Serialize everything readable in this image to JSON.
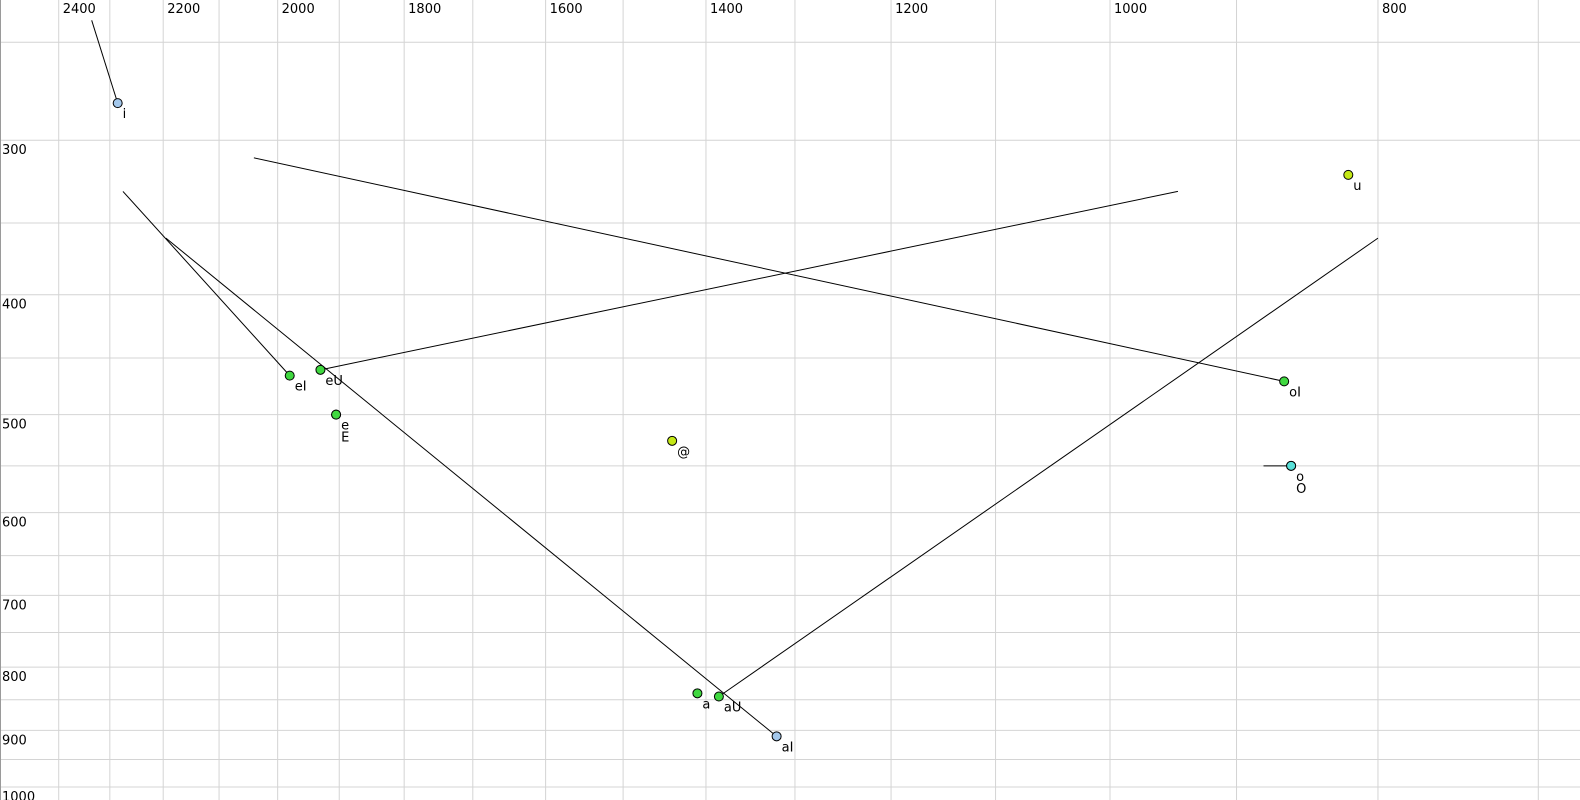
{
  "colors": {
    "background": "#ffffff",
    "grid": "#d4d4d4",
    "left_border": "#9a9a9a",
    "trajectory": "#000000",
    "dot_outline": "#000000",
    "green": "#40d840",
    "yellow_green": "#c4e816",
    "light_blue": "#a4c8ec",
    "cyan": "#58e0d8"
  },
  "chart_data": {
    "type": "scatter",
    "title": "",
    "description": "Vowel formant chart: F2 (Hz) on reversed log top axis, F1 (Hz) on log left axis increasing downward. Dots mark vowel onsets; lines show diphthong formant trajectories.",
    "xlabel": "",
    "ylabel": "",
    "grid": true,
    "x_axis": {
      "position": "top",
      "unit": "Hz",
      "scale": "log",
      "direction": "reversed",
      "tick_labels": [
        2400,
        2200,
        2000,
        1800,
        1600,
        1400,
        1200,
        1000,
        800
      ],
      "gridline_step": 100,
      "gridlines": [
        2400,
        2300,
        2200,
        2100,
        2000,
        1900,
        1800,
        1700,
        1600,
        1500,
        1400,
        1300,
        1200,
        1100,
        1000,
        900,
        800,
        700
      ]
    },
    "y_axis": {
      "position": "left",
      "unit": "Hz",
      "scale": "log",
      "direction": "down",
      "tick_labels": [
        300,
        400,
        500,
        600,
        700,
        800,
        900,
        1000
      ],
      "gridline_step": 50,
      "gridlines": [
        250,
        300,
        350,
        400,
        450,
        500,
        550,
        600,
        650,
        700,
        750,
        800,
        850,
        900,
        950,
        1000
      ]
    },
    "points": [
      {
        "label": "i",
        "f2": 2285,
        "f1": 280,
        "color": "light_blue",
        "traj": {
          "f2": 2335,
          "f1": 240
        }
      },
      {
        "label": "eI",
        "f2": 1980,
        "f1": 465,
        "color": "green",
        "traj": {
          "f2": 2275,
          "f1": 330
        }
      },
      {
        "label": "eU",
        "f2": 1930,
        "f1": 460,
        "color": "green",
        "traj": {
          "f2": 945,
          "f1": 330
        }
      },
      {
        "label": "e",
        "f2": 1905,
        "f1": 500,
        "color": "green"
      },
      {
        "label": "E",
        "f2": 1905,
        "f1": 500,
        "color": "green",
        "label_row": 1
      },
      {
        "label": "@",
        "f2": 1440,
        "f1": 525,
        "color": "yellow_green"
      },
      {
        "label": "u",
        "f2": 820,
        "f1": 320,
        "color": "yellow_green"
      },
      {
        "label": "oI",
        "f2": 865,
        "f1": 470,
        "color": "green",
        "traj": {
          "f2": 2040,
          "f1": 310
        }
      },
      {
        "label": "o",
        "f2": 860,
        "f1": 550,
        "color": "cyan",
        "traj": {
          "f2": 880,
          "f1": 550
        }
      },
      {
        "label": "O",
        "f2": 860,
        "f1": 550,
        "color": "cyan",
        "label_row": 1
      },
      {
        "label": "a",
        "f2": 1410,
        "f1": 840,
        "color": "green"
      },
      {
        "label": "aU",
        "f2": 1385,
        "f1": 845,
        "color": "green",
        "traj": {
          "f2": 800,
          "f1": 360
        }
      },
      {
        "label": "aI",
        "f2": 1320,
        "f1": 910,
        "color": "light_blue",
        "traj": {
          "f2": 2195,
          "f1": 360
        }
      }
    ]
  }
}
